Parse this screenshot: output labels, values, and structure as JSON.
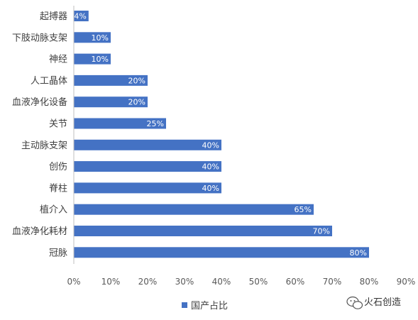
{
  "chart_data": {
    "type": "bar",
    "orientation": "horizontal",
    "categories": [
      "起搏器",
      "下肢动脉支架",
      "神经",
      "人工晶体",
      "血液净化设备",
      "关节",
      "主动脉支架",
      "创伤",
      "脊柱",
      "植介入",
      "血液净化耗材",
      "冠脉"
    ],
    "series": [
      {
        "name": "国产占比",
        "values": [
          4,
          10,
          10,
          20,
          20,
          25,
          40,
          40,
          40,
          65,
          70,
          80
        ],
        "color": "#4472C4"
      }
    ],
    "data_labels": [
      "4%",
      "10%",
      "10%",
      "20%",
      "20%",
      "25%",
      "40%",
      "40%",
      "40%",
      "65%",
      "70%",
      "80%"
    ],
    "xlim": [
      0,
      90
    ],
    "x_ticks": [
      "0%",
      "10%",
      "20%",
      "30%",
      "40%",
      "50%",
      "60%",
      "70%",
      "80%",
      "90%"
    ],
    "grid": false,
    "legend_position": "bottom"
  },
  "watermark": {
    "icon": "wechat-icon",
    "text": "火石创造"
  }
}
